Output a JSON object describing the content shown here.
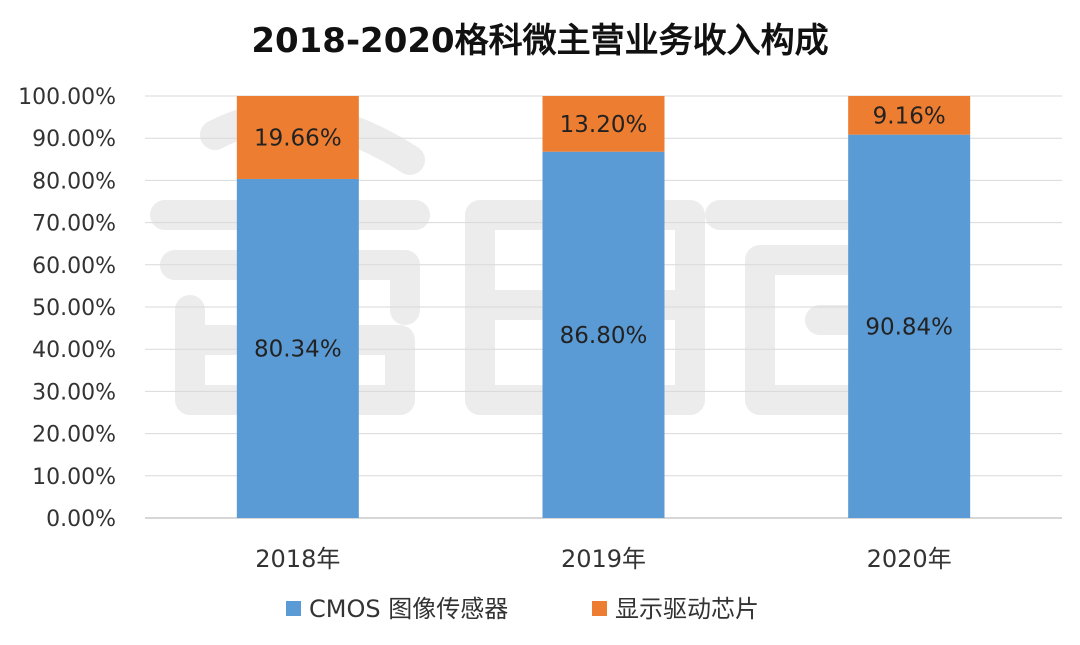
{
  "chart_data": {
    "type": "bar",
    "stacked": true,
    "title": "2018-2020格科微主营业务收入构成",
    "categories": [
      "2018年",
      "2019年",
      "2020年"
    ],
    "series": [
      {
        "name": "CMOS 图像传感器",
        "values": [
          80.34,
          86.8,
          90.84
        ],
        "labels": [
          "80.34%",
          "86.80%",
          "90.84%"
        ],
        "color": "#5B9BD5"
      },
      {
        "name": "显示驱动芯片",
        "values": [
          19.66,
          13.2,
          9.16
        ],
        "labels": [
          "19.66%",
          "13.20%",
          "9.16%"
        ],
        "color": "#ED7D31"
      }
    ],
    "ylim": [
      0,
      100
    ],
    "yticks": [
      "0.00%",
      "10.00%",
      "20.00%",
      "30.00%",
      "40.00%",
      "50.00%",
      "60.00%",
      "70.00%",
      "80.00%",
      "90.00%",
      "100.00%"
    ],
    "grid": true,
    "legend_position": "bottom"
  },
  "colors": {
    "watermark": "#ececec"
  }
}
